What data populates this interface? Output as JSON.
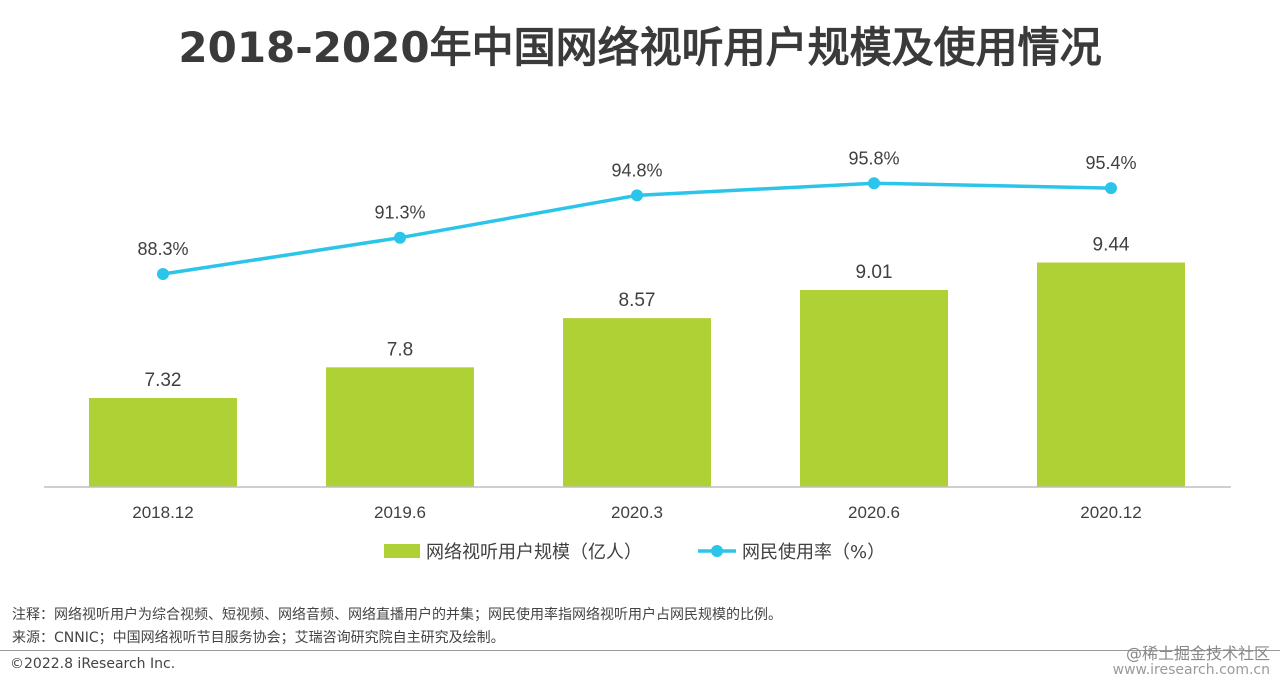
{
  "title": "2018-2020年中国网络视听用户规模及使用情况",
  "chart_data": {
    "type": "bar",
    "categories": [
      "2018.12",
      "2019.6",
      "2020.3",
      "2020.6",
      "2020.12"
    ],
    "series": [
      {
        "name": "网络视听用户规模（亿人）",
        "type": "bar",
        "values": [
          7.32,
          7.8,
          8.57,
          9.01,
          9.44
        ],
        "labels": [
          "7.32",
          "7.8",
          "8.57",
          "9.01",
          "9.44"
        ],
        "color": "#b0d135"
      },
      {
        "name": "网民使用率（%）",
        "type": "line",
        "values": [
          88.3,
          91.3,
          94.8,
          95.8,
          95.4
        ],
        "labels": [
          "88.3%",
          "91.3%",
          "94.8%",
          "95.8%",
          "95.4%"
        ],
        "color": "#2cc5ea"
      }
    ],
    "legend_position": "bottom",
    "grid": false
  },
  "notes": {
    "note": "注释：网络视听用户为综合视频、短视频、网络音频、网络直播用户的并集；网民使用率指网络视听用户占网民规模的比例。",
    "source": "来源：CNNIC；中国网络视听节目服务协会；艾瑞咨询研究院自主研究及绘制。"
  },
  "footer": {
    "copyright": "©2022.8 iResearch Inc.",
    "watermark": "@稀土掘金技术社区",
    "site": "www.iresearch.com.cn"
  }
}
